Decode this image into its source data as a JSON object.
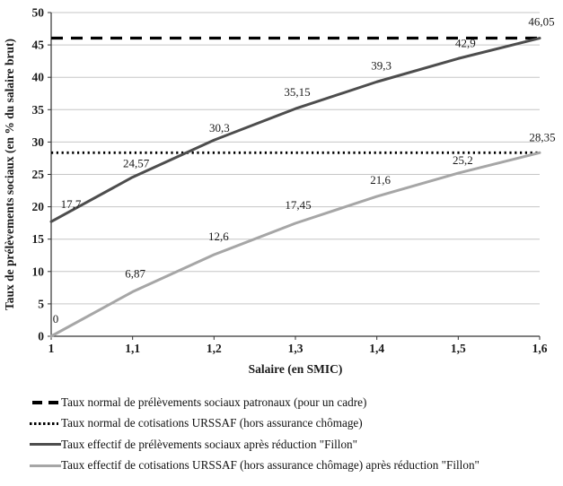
{
  "chart_data": {
    "type": "line",
    "x": [
      1,
      1.1,
      1.2,
      1.3,
      1.4,
      1.5,
      1.6
    ],
    "x_tick_labels": [
      "1",
      "1,1",
      "1,2",
      "1,3",
      "1,4",
      "1,5",
      "1,6"
    ],
    "xlabel": "Salaire (en SMIC)",
    "ylabel": "Taux de prélèvements sociaux (en % du salaire brut)",
    "xlim": [
      1,
      1.6
    ],
    "ylim": [
      0,
      50
    ],
    "y_tick_step": 5,
    "grid": "horizontal",
    "legend_position": "bottom-left",
    "colors": {
      "grid": "#c6c6c6",
      "axis": "#333333",
      "reference_black": "#000000",
      "series_dark": "#4d4d4d",
      "series_gray": "#a6a6a6"
    },
    "series": [
      {
        "name": "Taux normal de prélèvements sociaux patronaux (pour un cadre)",
        "style": "dashed",
        "color": "#000000",
        "ref_value": 46.05
      },
      {
        "name": "Taux normal de cotisations URSSAF (hors assurance chômage)",
        "style": "dotted",
        "color": "#000000",
        "ref_value": 28.35
      },
      {
        "name": "Taux effectif de prélèvements sociaux après réduction \"Fillon\"",
        "style": "solid",
        "color": "#4d4d4d",
        "values": [
          17.7,
          24.57,
          30.3,
          35.15,
          39.3,
          42.9,
          46.05
        ],
        "labels": [
          "17,7",
          "24,57",
          "30,3",
          "35,15",
          "39,3",
          "42,9",
          "46,05"
        ]
      },
      {
        "name": "Taux effectif de cotisations URSSAF (hors assurance chômage) après réduction \"Fillon\"",
        "style": "solid",
        "color": "#a6a6a6",
        "values": [
          0,
          6.87,
          12.6,
          17.45,
          21.6,
          25.2,
          28.35
        ],
        "labels": [
          "0",
          "6,87",
          "12,6",
          "17,45",
          "21,6",
          "25,2",
          "28,35"
        ]
      }
    ]
  }
}
